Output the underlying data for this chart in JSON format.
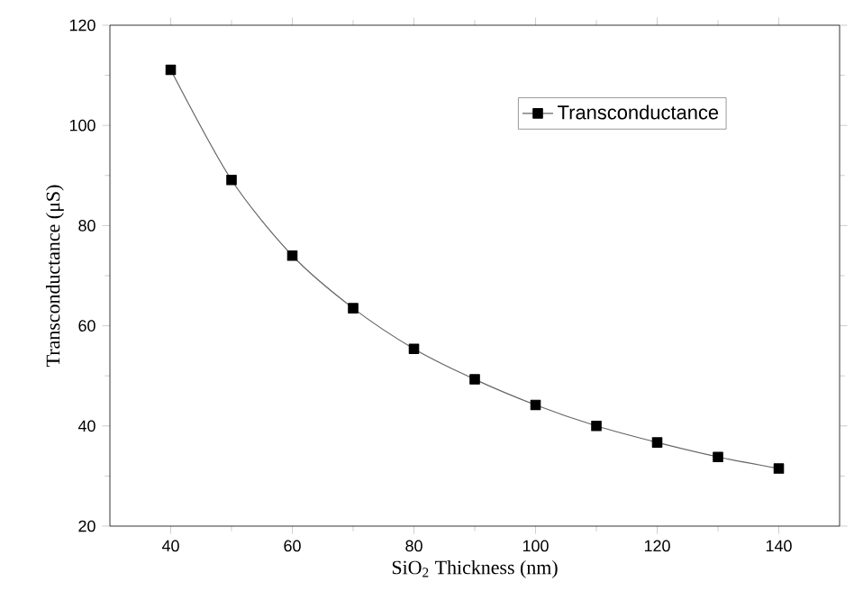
{
  "chart_data": {
    "type": "line",
    "xlabel": "SiO$_{2}$ Thickness (nm)",
    "ylabel": "Transconductance (μS)",
    "x": [
      40,
      50,
      60,
      70,
      80,
      90,
      100,
      110,
      120,
      130,
      140
    ],
    "series": [
      {
        "name": "Transconductance",
        "color": "#000000",
        "values": [
          111.1,
          89.1,
          74.0,
          63.5,
          55.4,
          49.3,
          44.2,
          40.0,
          36.7,
          33.8,
          31.5
        ]
      }
    ],
    "xlim": [
      30,
      150
    ],
    "xticks": [
      40,
      60,
      80,
      100,
      120,
      140
    ],
    "ylim": [
      20,
      120
    ],
    "yticks": [
      20,
      40,
      60,
      80,
      100,
      120
    ],
    "marker": "square",
    "line_style": "solid",
    "legend": "top right",
    "grid": false
  }
}
